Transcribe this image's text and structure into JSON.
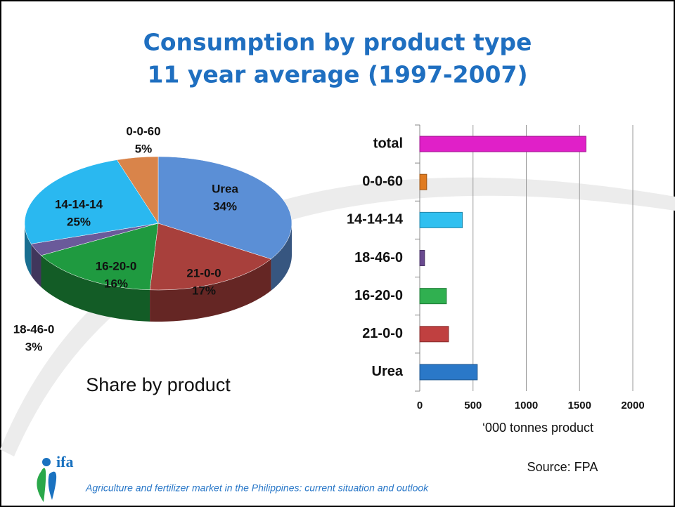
{
  "slide": {
    "title": [
      "Consumption by product type",
      "11 year average (1997-2007)"
    ],
    "source": "Source: FPA",
    "footer": "Agriculture and fertilizer market in the Philippines: current situation and outlook",
    "logo": "ifa"
  },
  "chart_data": [
    {
      "type": "pie",
      "title": "Share by product",
      "categories": [
        "Urea",
        "21-0-0",
        "16-20-0",
        "18-46-0",
        "14-14-14",
        "0-0-60"
      ],
      "values": [
        34,
        17,
        16,
        3,
        25,
        5
      ],
      "value_labels": [
        "34%",
        "17%",
        "16%",
        "3%",
        "25%",
        "5%"
      ],
      "colors": [
        "#5b8fd6",
        "#a8403c",
        "#1f9a40",
        "#6a5a9a",
        "#2ab8f0",
        "#d9844a"
      ]
    },
    {
      "type": "hbar",
      "xlabel": "‘000 tonnes product",
      "categories": [
        "Urea",
        "21-0-0",
        "16-20-0",
        "18-46-0",
        "14-14-14",
        "0-0-60",
        "total"
      ],
      "values": [
        540,
        270,
        250,
        45,
        400,
        65,
        1560
      ],
      "colors": [
        "#2a78c8",
        "#c04040",
        "#30b050",
        "#6a4a90",
        "#30c0f0",
        "#e07b20",
        "#e020c8"
      ],
      "xlim": [
        0,
        2000
      ],
      "xticks": [
        0,
        500,
        1000,
        1500,
        2000
      ],
      "grid": true
    }
  ]
}
